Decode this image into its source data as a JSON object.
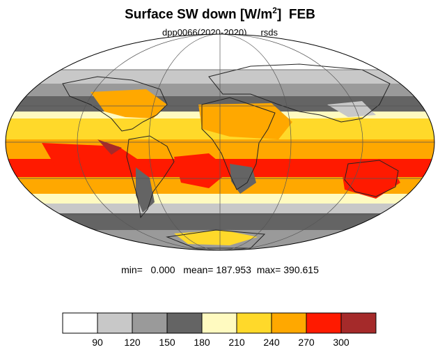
{
  "title": {
    "main": "Surface SW down [W/m",
    "sup": "2",
    "close": "]",
    "month": "FEB"
  },
  "subtitle": {
    "experiment": "dpp0066(2020-2020)",
    "variable": "rsds"
  },
  "stats": {
    "min_label": "min=",
    "min": "0.000",
    "mean_label": "mean=",
    "mean": "187.953",
    "max_label": "max=",
    "max": "390.615"
  },
  "colorbar": {
    "colors": [
      "#ffffff",
      "#c8c8c8",
      "#9a9a9a",
      "#646464",
      "#fffac0",
      "#ffd92a",
      "#ffa800",
      "#ff1a00",
      "#a52a2a"
    ],
    "ticks": [
      "90",
      "120",
      "150",
      "180",
      "210",
      "240",
      "270",
      "300"
    ]
  },
  "colors": {
    "land_outline": "#222222",
    "grid": "#555555"
  }
}
